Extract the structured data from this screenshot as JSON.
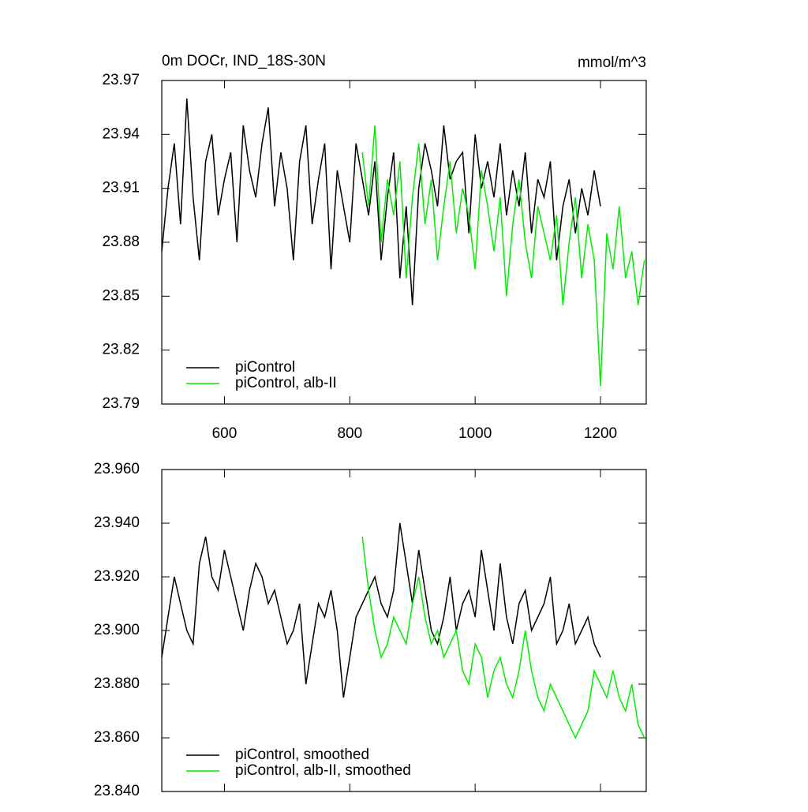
{
  "chart_data": [
    {
      "type": "line",
      "title": "0m DOCr, IND_18S-30N",
      "units": "mmol/m^3",
      "xlim": [
        500,
        1273
      ],
      "ylim": [
        23.79,
        23.97
      ],
      "xticks": [
        600,
        800,
        1000,
        1200
      ],
      "yticks": [
        23.79,
        23.82,
        23.85,
        23.88,
        23.91,
        23.94,
        23.97
      ],
      "legend": "lower left",
      "series": [
        {
          "name": "piControl",
          "color": "#000000",
          "x": [
            500,
            510,
            520,
            530,
            540,
            550,
            560,
            570,
            580,
            590,
            600,
            610,
            620,
            630,
            640,
            650,
            660,
            670,
            680,
            690,
            700,
            710,
            720,
            730,
            740,
            750,
            760,
            770,
            780,
            790,
            800,
            810,
            820,
            830,
            840,
            850,
            860,
            870,
            880,
            890,
            900,
            910,
            920,
            930,
            940,
            950,
            960,
            970,
            980,
            990,
            1000,
            1010,
            1020,
            1030,
            1040,
            1050,
            1060,
            1070,
            1080,
            1090,
            1100,
            1110,
            1120,
            1130,
            1140,
            1150,
            1160,
            1170,
            1180,
            1190,
            1200
          ],
          "values": [
            23.875,
            23.91,
            23.935,
            23.89,
            23.96,
            23.905,
            23.87,
            23.925,
            23.94,
            23.895,
            23.915,
            23.93,
            23.88,
            23.945,
            23.92,
            23.905,
            23.935,
            23.955,
            23.9,
            23.93,
            23.91,
            23.87,
            23.925,
            23.945,
            23.89,
            23.915,
            23.935,
            23.865,
            23.92,
            23.9,
            23.88,
            23.935,
            23.915,
            23.895,
            23.925,
            23.87,
            23.905,
            23.93,
            23.86,
            23.9,
            23.845,
            23.91,
            23.935,
            23.92,
            23.9,
            23.945,
            23.915,
            23.925,
            23.93,
            23.885,
            23.94,
            23.91,
            23.925,
            23.905,
            23.935,
            23.895,
            23.92,
            23.9,
            23.93,
            23.885,
            23.915,
            23.905,
            23.925,
            23.87,
            23.9,
            23.915,
            23.885,
            23.91,
            23.895,
            23.92,
            23.9
          ]
        },
        {
          "name": "piControl, alb-II",
          "color": "#00ee00",
          "x": [
            820,
            830,
            840,
            850,
            860,
            870,
            880,
            890,
            900,
            910,
            920,
            930,
            940,
            950,
            960,
            970,
            980,
            990,
            1000,
            1010,
            1020,
            1030,
            1040,
            1050,
            1060,
            1070,
            1080,
            1090,
            1100,
            1110,
            1120,
            1130,
            1140,
            1150,
            1160,
            1170,
            1180,
            1190,
            1200,
            1210,
            1220,
            1230,
            1240,
            1250,
            1260,
            1270
          ],
          "values": [
            23.93,
            23.9,
            23.945,
            23.88,
            23.915,
            23.895,
            23.925,
            23.86,
            23.905,
            23.935,
            23.89,
            23.915,
            23.87,
            23.9,
            23.925,
            23.885,
            23.91,
            23.895,
            23.865,
            23.92,
            23.9,
            23.875,
            23.905,
            23.85,
            23.89,
            23.915,
            23.88,
            23.86,
            23.9,
            23.885,
            23.87,
            23.895,
            23.845,
            23.88,
            23.905,
            23.86,
            23.89,
            23.87,
            23.8,
            23.885,
            23.865,
            23.9,
            23.86,
            23.875,
            23.845,
            23.87
          ]
        }
      ]
    },
    {
      "type": "line",
      "xlim": [
        500,
        1273
      ],
      "ylim": [
        23.84,
        23.96
      ],
      "xticks": [
        600,
        800,
        1000,
        1200
      ],
      "yticks": [
        {
          "value": 23.84,
          "label": "23.840"
        },
        {
          "value": 23.86,
          "label": "23.860"
        },
        {
          "value": 23.88,
          "label": "23.880"
        },
        {
          "value": 23.9,
          "label": "23.900"
        },
        {
          "value": 23.92,
          "label": "23.920"
        },
        {
          "value": 23.94,
          "label": "23.940"
        },
        {
          "value": 23.96,
          "label": "23.960"
        }
      ],
      "legend": "lower left",
      "series": [
        {
          "name": "piControl, smoothed",
          "color": "#000000",
          "x": [
            500,
            510,
            520,
            530,
            540,
            550,
            560,
            570,
            580,
            590,
            600,
            610,
            620,
            630,
            640,
            650,
            660,
            670,
            680,
            690,
            700,
            710,
            720,
            730,
            740,
            750,
            760,
            770,
            780,
            790,
            800,
            810,
            820,
            830,
            840,
            850,
            860,
            870,
            880,
            890,
            900,
            910,
            920,
            930,
            940,
            950,
            960,
            970,
            980,
            990,
            1000,
            1010,
            1020,
            1030,
            1040,
            1050,
            1060,
            1070,
            1080,
            1090,
            1100,
            1110,
            1120,
            1130,
            1140,
            1150,
            1160,
            1170,
            1180,
            1190,
            1200
          ],
          "values": [
            23.89,
            23.905,
            23.92,
            23.91,
            23.9,
            23.895,
            23.925,
            23.935,
            23.92,
            23.915,
            23.93,
            23.92,
            23.91,
            23.9,
            23.915,
            23.925,
            23.92,
            23.91,
            23.915,
            23.905,
            23.895,
            23.9,
            23.91,
            23.88,
            23.895,
            23.91,
            23.905,
            23.915,
            23.9,
            23.875,
            23.89,
            23.905,
            23.91,
            23.915,
            23.92,
            23.91,
            23.905,
            23.915,
            23.94,
            23.925,
            23.91,
            23.93,
            23.915,
            23.9,
            23.895,
            23.905,
            23.92,
            23.9,
            23.91,
            23.915,
            23.905,
            23.93,
            23.915,
            23.9,
            23.925,
            23.905,
            23.895,
            23.91,
            23.915,
            23.9,
            23.905,
            23.91,
            23.92,
            23.895,
            23.9,
            23.91,
            23.895,
            23.9,
            23.905,
            23.895,
            23.89
          ]
        },
        {
          "name": "piControl, alb-II, smoothed",
          "color": "#00ee00",
          "x": [
            820,
            830,
            840,
            850,
            860,
            870,
            880,
            890,
            900,
            910,
            920,
            930,
            940,
            950,
            960,
            970,
            980,
            990,
            1000,
            1010,
            1020,
            1030,
            1040,
            1050,
            1060,
            1070,
            1080,
            1090,
            1100,
            1110,
            1120,
            1130,
            1140,
            1150,
            1160,
            1170,
            1180,
            1190,
            1200,
            1210,
            1220,
            1230,
            1240,
            1250,
            1260,
            1270
          ],
          "values": [
            23.935,
            23.915,
            23.9,
            23.89,
            23.895,
            23.905,
            23.9,
            23.895,
            23.91,
            23.92,
            23.905,
            23.895,
            23.9,
            23.89,
            23.895,
            23.9,
            23.885,
            23.88,
            23.895,
            23.89,
            23.875,
            23.885,
            23.89,
            23.88,
            23.875,
            23.885,
            23.9,
            23.885,
            23.875,
            23.87,
            23.88,
            23.875,
            23.87,
            23.865,
            23.86,
            23.865,
            23.87,
            23.885,
            23.88,
            23.875,
            23.885,
            23.875,
            23.87,
            23.88,
            23.865,
            23.86
          ]
        }
      ]
    }
  ]
}
